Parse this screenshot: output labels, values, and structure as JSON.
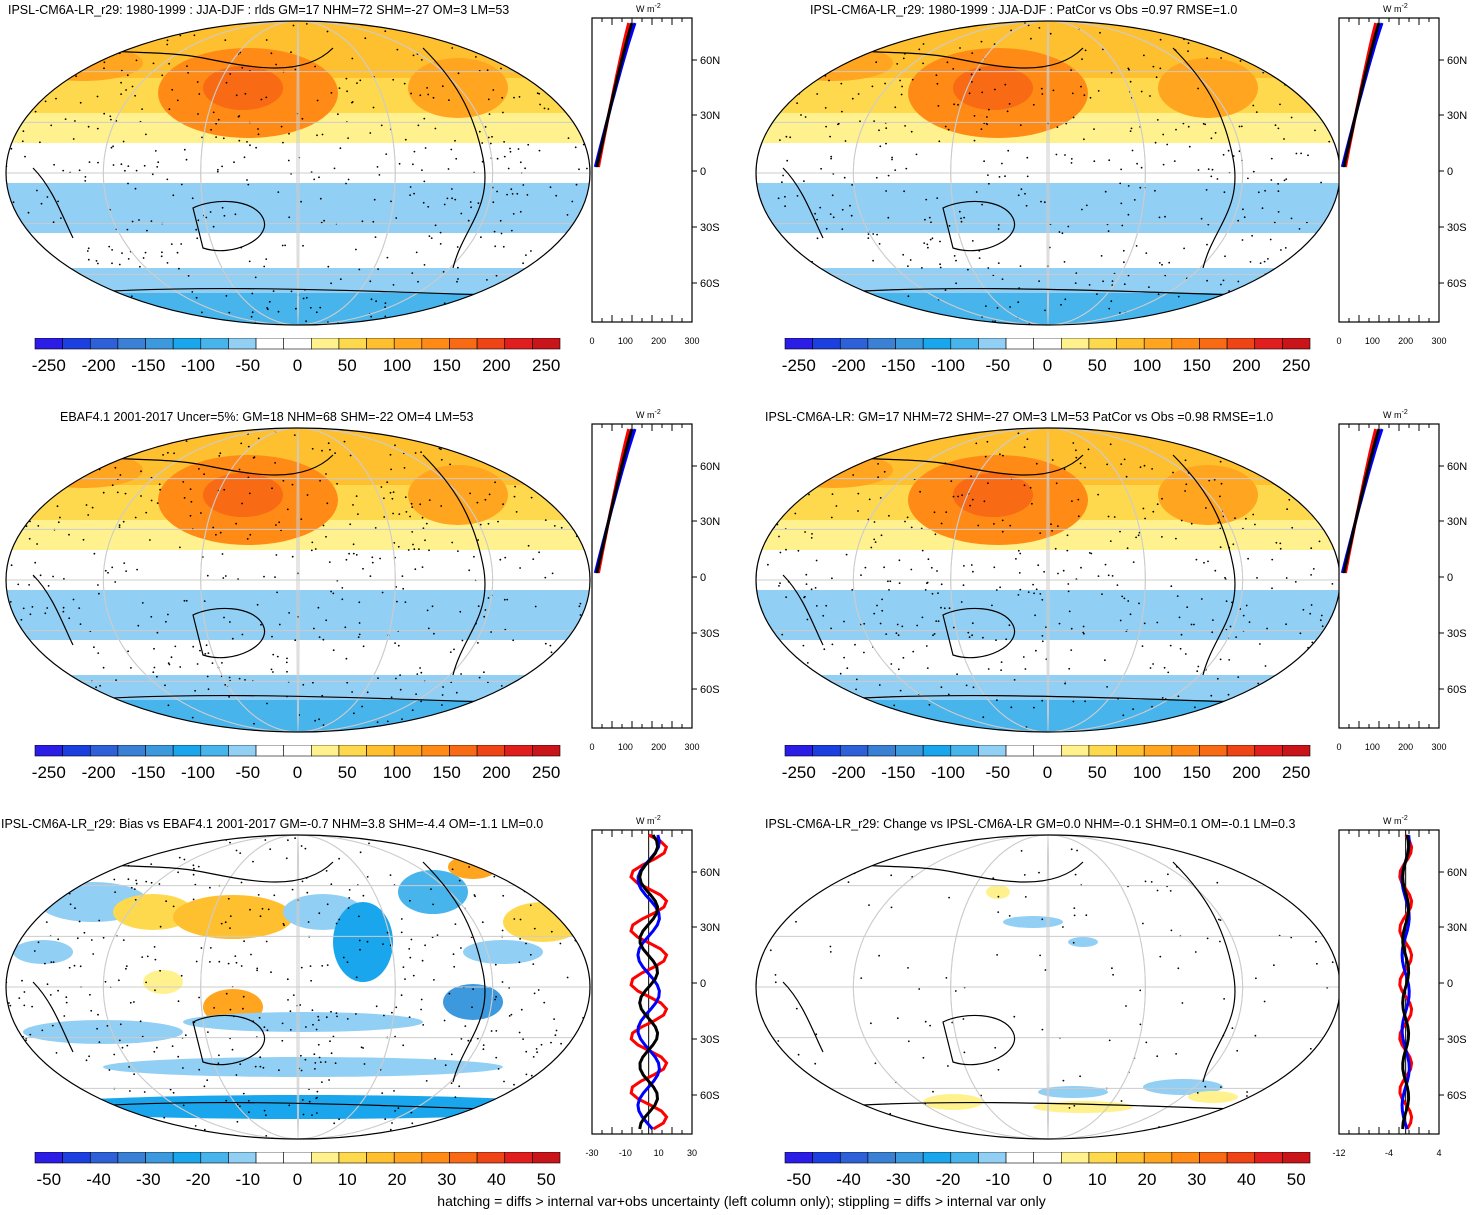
{
  "caption": "hatching = diffs > internal var+obs uncertainty (left column only); stippling = diffs > internal var only",
  "profile_unit": "W m",
  "profile_unit_exp": "-2",
  "lat_labels": [
    "60N",
    "30N",
    "0",
    "30S",
    "60S"
  ],
  "colors": {
    "palette": [
      "#2b1ce6",
      "#1c3fe0",
      "#2e61d8",
      "#3a80d4",
      "#3d99de",
      "#1aa6ec",
      "#47b4ec",
      "#92cff4",
      "#ffffff",
      "#ffffff",
      "#fff28e",
      "#ffd94d",
      "#ffc030",
      "#ffa51f",
      "#ff8a15",
      "#f86a14",
      "#ef4416",
      "#e01e1e",
      "#c9141a"
    ],
    "obs_line": "#ff0000",
    "model_line": "#0000ff",
    "mean_line": "#000000"
  },
  "panels": [
    {
      "title": "IPSL-CM6A-LR_r29: 1980-1999 : JJA-DJF : rlds GM=17 NHM=72 SHM=-27 OM=3 LM=53",
      "cbar_labels": [
        "-250",
        "-200",
        "-150",
        "-100",
        "-50",
        "0",
        "50",
        "100",
        "150",
        "200",
        "250"
      ],
      "profile_ticks": [
        "0",
        "100",
        "200",
        "300"
      ]
    },
    {
      "title": "IPSL-CM6A-LR_r29: 1980-1999 : JJA-DJF : PatCor vs Obs =0.97 RMSE=1.0",
      "cbar_labels": [
        "-250",
        "-200",
        "-150",
        "-100",
        "-50",
        "0",
        "50",
        "100",
        "150",
        "200",
        "250"
      ],
      "profile_ticks": [
        "0",
        "100",
        "200",
        "300"
      ]
    },
    {
      "title": "EBAF4.1 2001-2017 Uncer=5%: GM=18 NHM=68 SHM=-22 OM=4 LM=53",
      "cbar_labels": [
        "-250",
        "-200",
        "-150",
        "-100",
        "-50",
        "0",
        "50",
        "100",
        "150",
        "200",
        "250"
      ],
      "profile_ticks": [
        "0",
        "100",
        "200",
        "300"
      ]
    },
    {
      "title": "IPSL-CM6A-LR: GM=17 NHM=72 SHM=-27 OM=3 LM=53 PatCor vs Obs =0.98 RMSE=1.0",
      "cbar_labels": [
        "-250",
        "-200",
        "-150",
        "-100",
        "-50",
        "0",
        "50",
        "100",
        "150",
        "200",
        "250"
      ],
      "profile_ticks": [
        "0",
        "100",
        "200",
        "300"
      ]
    },
    {
      "title": "IPSL-CM6A-LR_r29: Bias vs EBAF4.1 2001-2017 GM=-0.7 NHM=3.8 SHM=-4.4 OM=-1.1 LM=0.0",
      "cbar_labels": [
        "-50",
        "-40",
        "-30",
        "-20",
        "-10",
        "0",
        "10",
        "20",
        "30",
        "40",
        "50"
      ],
      "profile_ticks": [
        "-30",
        "-10",
        "10",
        "30"
      ]
    },
    {
      "title": "IPSL-CM6A-LR_r29: Change vs IPSL-CM6A-LR GM=0.0 NHM=-0.1 SHM=0.1 OM=-0.1 LM=0.3",
      "cbar_labels": [
        "-50",
        "-40",
        "-30",
        "-20",
        "-10",
        "0",
        "10",
        "20",
        "30",
        "40",
        "50"
      ],
      "profile_ticks": [
        "-12",
        "-4",
        "4"
      ]
    }
  ]
}
